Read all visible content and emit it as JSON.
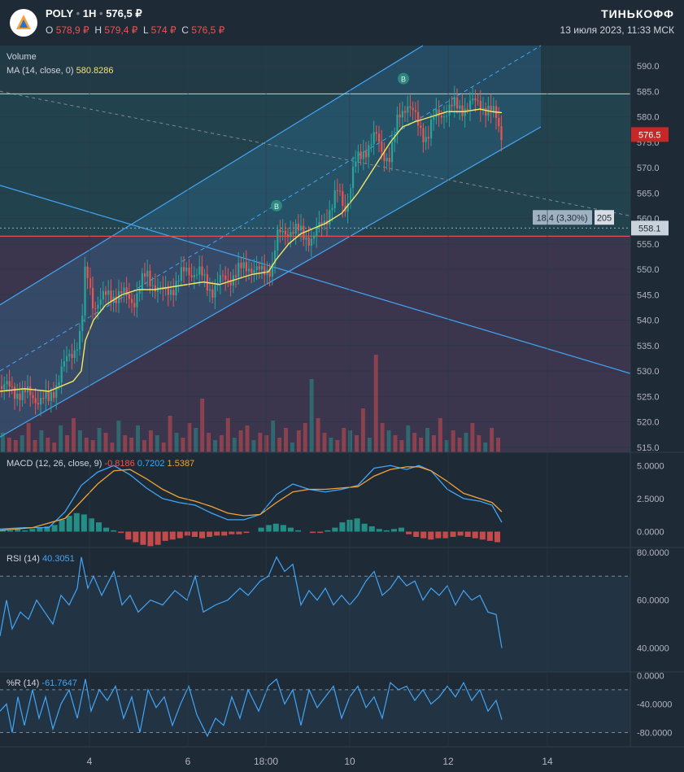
{
  "header": {
    "symbol": "POLY",
    "interval": "1H",
    "last": "576,5 ₽",
    "ohlc": [
      {
        "k": "O",
        "v": "578,9 ₽"
      },
      {
        "k": "H",
        "v": "579,4 ₽"
      },
      {
        "k": "L",
        "v": "574 ₽"
      },
      {
        "k": "C",
        "v": "576,5 ₽"
      }
    ],
    "brand": "ТИНЬКОФФ",
    "datetime": "13 июля 2023, 11:33 МСК"
  },
  "legends": {
    "volume": "Volume",
    "ma": "MA (14, close, 0)",
    "ma_value": "580.8286",
    "macd": "MACD (12, 26, close, 9)",
    "macd_values": [
      "-0.8186",
      "0.7202",
      "1.5387"
    ],
    "rsi": "RSI (14)",
    "rsi_value": "40.3051",
    "wr": "%R (14)",
    "wr_value": "-61.7647"
  },
  "measure": {
    "label": "18,4 (3,30%)",
    "bars": "205"
  },
  "colors": {
    "up": "#26a69a",
    "down": "#ef5350",
    "ma": "#f5e663",
    "channel": "#42a5f5",
    "macd_line": "#42a5f5",
    "signal_line": "#f2a33a",
    "rsi_line": "#42a5f5",
    "last_price": "#c62828",
    "hline": "#d4e157",
    "support": "#e05252"
  },
  "chart_data": [
    {
      "type": "candlestick",
      "title": "",
      "x_ticks": [
        "4",
        "6",
        "18:00",
        "10",
        "12",
        "14"
      ],
      "y_ticks": [
        515,
        520,
        525,
        530,
        535,
        540,
        545,
        550,
        555,
        560,
        565,
        570,
        575,
        580,
        585,
        590
      ],
      "ylim": [
        514,
        594
      ],
      "last_price_label": "576.5",
      "crosshair_price_label": "558.1",
      "price_trend": [
        [
          0,
          527
        ],
        [
          40,
          525
        ],
        [
          60,
          524
        ],
        [
          75,
          530
        ],
        [
          90,
          534
        ],
        [
          100,
          538
        ],
        [
          105,
          550
        ],
        [
          115,
          543
        ],
        [
          135,
          545
        ],
        [
          150,
          545
        ],
        [
          165,
          544
        ],
        [
          180,
          549
        ],
        [
          200,
          545
        ],
        [
          215,
          547
        ],
        [
          230,
          550
        ],
        [
          245,
          549
        ],
        [
          260,
          546
        ],
        [
          275,
          548
        ],
        [
          290,
          549
        ],
        [
          305,
          551
        ],
        [
          320,
          549
        ],
        [
          335,
          551
        ],
        [
          340,
          556
        ],
        [
          355,
          558
        ],
        [
          370,
          557
        ],
        [
          385,
          556
        ],
        [
          400,
          560
        ],
        [
          415,
          565
        ],
        [
          425,
          562
        ],
        [
          435,
          570
        ],
        [
          450,
          574
        ],
        [
          462,
          576
        ],
        [
          470,
          573
        ],
        [
          480,
          572
        ],
        [
          490,
          580
        ],
        [
          500,
          583
        ],
        [
          515,
          578
        ],
        [
          525,
          576
        ],
        [
          535,
          580
        ],
        [
          545,
          581
        ],
        [
          560,
          582
        ],
        [
          575,
          582
        ],
        [
          590,
          583
        ],
        [
          600,
          581
        ],
        [
          610,
          580
        ],
        [
          617,
          576.5
        ]
      ],
      "ma14": [
        [
          0,
          526
        ],
        [
          30,
          526.5
        ],
        [
          60,
          526
        ],
        [
          90,
          528
        ],
        [
          100,
          530
        ],
        [
          105,
          536
        ],
        [
          115,
          540
        ],
        [
          130,
          543
        ],
        [
          150,
          545
        ],
        [
          170,
          546
        ],
        [
          190,
          546
        ],
        [
          210,
          546.5
        ],
        [
          230,
          547
        ],
        [
          250,
          547.5
        ],
        [
          270,
          547
        ],
        [
          290,
          548
        ],
        [
          310,
          549
        ],
        [
          330,
          549.5
        ],
        [
          340,
          552
        ],
        [
          355,
          555
        ],
        [
          370,
          557
        ],
        [
          385,
          558
        ],
        [
          400,
          559
        ],
        [
          420,
          561
        ],
        [
          440,
          565
        ],
        [
          460,
          570
        ],
        [
          480,
          575
        ],
        [
          495,
          578
        ],
        [
          510,
          579
        ],
        [
          530,
          580
        ],
        [
          550,
          581
        ],
        [
          570,
          581
        ],
        [
          590,
          581.5
        ],
        [
          605,
          581
        ],
        [
          617,
          580.8
        ]
      ],
      "volume_bars": [
        8,
        6,
        5,
        7,
        12,
        5,
        9,
        6,
        4,
        11,
        7,
        14,
        9,
        6,
        5,
        10,
        8,
        4,
        13,
        7,
        6,
        11,
        5,
        9,
        7,
        4,
        15,
        8,
        6,
        12,
        10,
        22,
        8,
        5,
        7,
        14,
        6,
        9,
        11,
        5,
        8,
        7,
        13,
        6,
        10,
        4,
        9,
        12,
        30,
        14,
        8,
        6,
        5,
        10,
        9,
        7,
        18,
        6,
        40,
        12,
        9,
        7,
        5,
        11,
        8,
        6,
        10,
        7,
        14,
        5,
        9,
        6,
        8,
        12,
        7,
        4,
        10,
        6
      ]
    },
    {
      "type": "line",
      "title": "",
      "y_ticks": [
        "5.0000",
        "2.5000",
        "0.0000"
      ],
      "ylim": [
        -1.2,
        6.0
      ],
      "macd": [
        [
          0,
          0.2
        ],
        [
          30,
          0.3
        ],
        [
          60,
          0.3
        ],
        [
          80,
          1.5
        ],
        [
          100,
          3.5
        ],
        [
          120,
          4.5
        ],
        [
          140,
          5.0
        ],
        [
          160,
          4.3
        ],
        [
          180,
          3.3
        ],
        [
          200,
          2.5
        ],
        [
          220,
          2.2
        ],
        [
          240,
          2.0
        ],
        [
          260,
          1.4
        ],
        [
          280,
          0.9
        ],
        [
          300,
          0.9
        ],
        [
          320,
          1.3
        ],
        [
          340,
          2.8
        ],
        [
          360,
          3.6
        ],
        [
          380,
          3.2
        ],
        [
          400,
          3.0
        ],
        [
          420,
          3.2
        ],
        [
          440,
          3.5
        ],
        [
          460,
          4.8
        ],
        [
          480,
          5.0
        ],
        [
          500,
          4.7
        ],
        [
          515,
          5.0
        ],
        [
          530,
          4.6
        ],
        [
          550,
          3.2
        ],
        [
          570,
          2.5
        ],
        [
          590,
          2.3
        ],
        [
          605,
          2.0
        ],
        [
          617,
          0.7
        ]
      ],
      "signal": [
        [
          0,
          0.1
        ],
        [
          40,
          0.3
        ],
        [
          80,
          1.0
        ],
        [
          100,
          2.3
        ],
        [
          120,
          3.6
        ],
        [
          140,
          4.6
        ],
        [
          160,
          4.7
        ],
        [
          180,
          4.0
        ],
        [
          200,
          3.2
        ],
        [
          220,
          2.6
        ],
        [
          240,
          2.3
        ],
        [
          260,
          1.9
        ],
        [
          280,
          1.4
        ],
        [
          300,
          1.2
        ],
        [
          320,
          1.3
        ],
        [
          340,
          2.2
        ],
        [
          360,
          3.0
        ],
        [
          380,
          3.2
        ],
        [
          400,
          3.2
        ],
        [
          420,
          3.3
        ],
        [
          440,
          3.4
        ],
        [
          460,
          4.2
        ],
        [
          480,
          4.7
        ],
        [
          500,
          4.9
        ],
        [
          515,
          4.9
        ],
        [
          530,
          4.6
        ],
        [
          550,
          3.8
        ],
        [
          570,
          2.9
        ],
        [
          590,
          2.5
        ],
        [
          605,
          2.2
        ],
        [
          617,
          1.5
        ]
      ],
      "histogram": [
        0.1,
        0.1,
        0.2,
        0.1,
        0.2,
        0.3,
        0.4,
        0.5,
        0.9,
        1.2,
        1.4,
        1.3,
        1.0,
        0.7,
        0.3,
        0.1,
        -0.1,
        -0.6,
        -0.8,
        -1.0,
        -1.1,
        -1.0,
        -0.7,
        -0.6,
        -0.5,
        -0.3,
        -0.4,
        -0.5,
        -0.4,
        -0.3,
        -0.3,
        -0.2,
        -0.2,
        -0.1,
        0.0,
        0.3,
        0.5,
        0.6,
        0.5,
        0.3,
        0.1,
        0.0,
        -0.1,
        -0.1,
        0.1,
        0.3,
        0.7,
        0.9,
        1.0,
        0.6,
        0.4,
        0.2,
        0.1,
        0.2,
        0.3,
        -0.2,
        -0.4,
        -0.5,
        -0.6,
        -0.5,
        -0.5,
        -0.4,
        -0.3,
        -0.4,
        -0.5,
        -0.6,
        -0.7,
        -0.8
      ]
    },
    {
      "type": "line",
      "title": "",
      "y_ticks": [
        "80.0000",
        "60.0000",
        "40.0000"
      ],
      "ylim": [
        30,
        82
      ],
      "levels": [
        70,
        30
      ],
      "rsi": [
        [
          0,
          45
        ],
        [
          8,
          60
        ],
        [
          15,
          48
        ],
        [
          25,
          55
        ],
        [
          35,
          52
        ],
        [
          45,
          60
        ],
        [
          55,
          55
        ],
        [
          65,
          50
        ],
        [
          75,
          62
        ],
        [
          85,
          58
        ],
        [
          95,
          65
        ],
        [
          100,
          78
        ],
        [
          108,
          65
        ],
        [
          115,
          70
        ],
        [
          125,
          62
        ],
        [
          140,
          72
        ],
        [
          150,
          58
        ],
        [
          160,
          62
        ],
        [
          170,
          55
        ],
        [
          185,
          60
        ],
        [
          200,
          58
        ],
        [
          215,
          64
        ],
        [
          230,
          60
        ],
        [
          240,
          70
        ],
        [
          250,
          55
        ],
        [
          265,
          58
        ],
        [
          280,
          60
        ],
        [
          295,
          65
        ],
        [
          305,
          62
        ],
        [
          320,
          68
        ],
        [
          330,
          70
        ],
        [
          340,
          78
        ],
        [
          350,
          72
        ],
        [
          360,
          75
        ],
        [
          370,
          58
        ],
        [
          380,
          64
        ],
        [
          390,
          60
        ],
        [
          400,
          65
        ],
        [
          410,
          58
        ],
        [
          420,
          62
        ],
        [
          430,
          58
        ],
        [
          440,
          62
        ],
        [
          450,
          68
        ],
        [
          460,
          72
        ],
        [
          470,
          62
        ],
        [
          480,
          65
        ],
        [
          490,
          70
        ],
        [
          500,
          66
        ],
        [
          510,
          68
        ],
        [
          520,
          60
        ],
        [
          530,
          65
        ],
        [
          540,
          62
        ],
        [
          550,
          66
        ],
        [
          560,
          58
        ],
        [
          570,
          64
        ],
        [
          580,
          60
        ],
        [
          590,
          62
        ],
        [
          600,
          55
        ],
        [
          610,
          54
        ],
        [
          617,
          40
        ]
      ]
    },
    {
      "type": "line",
      "title": "",
      "y_ticks": [
        "0.0000",
        "-40.0000",
        "-80.0000"
      ],
      "ylim": [
        -100,
        5
      ],
      "levels": [
        -20,
        -80
      ],
      "wr": [
        [
          0,
          -50
        ],
        [
          8,
          -40
        ],
        [
          15,
          -80
        ],
        [
          22,
          -30
        ],
        [
          30,
          -70
        ],
        [
          40,
          -20
        ],
        [
          48,
          -60
        ],
        [
          56,
          -30
        ],
        [
          65,
          -75
        ],
        [
          75,
          -40
        ],
        [
          85,
          -20
        ],
        [
          95,
          -60
        ],
        [
          105,
          -5
        ],
        [
          112,
          -50
        ],
        [
          122,
          -20
        ],
        [
          132,
          -35
        ],
        [
          142,
          -15
        ],
        [
          152,
          -60
        ],
        [
          162,
          -30
        ],
        [
          172,
          -80
        ],
        [
          182,
          -20
        ],
        [
          192,
          -45
        ],
        [
          202,
          -30
        ],
        [
          212,
          -70
        ],
        [
          222,
          -40
        ],
        [
          232,
          -15
        ],
        [
          242,
          -55
        ],
        [
          255,
          -85
        ],
        [
          265,
          -60
        ],
        [
          275,
          -70
        ],
        [
          285,
          -30
        ],
        [
          295,
          -60
        ],
        [
          305,
          -20
        ],
        [
          318,
          -50
        ],
        [
          330,
          -15
        ],
        [
          340,
          -5
        ],
        [
          350,
          -40
        ],
        [
          360,
          -20
        ],
        [
          370,
          -70
        ],
        [
          380,
          -20
        ],
        [
          390,
          -45
        ],
        [
          400,
          -30
        ],
        [
          410,
          -15
        ],
        [
          420,
          -60
        ],
        [
          430,
          -30
        ],
        [
          440,
          -15
        ],
        [
          450,
          -45
        ],
        [
          460,
          -30
        ],
        [
          470,
          -60
        ],
        [
          480,
          -10
        ],
        [
          490,
          -20
        ],
        [
          500,
          -15
        ],
        [
          510,
          -35
        ],
        [
          520,
          -20
        ],
        [
          530,
          -40
        ],
        [
          540,
          -30
        ],
        [
          550,
          -15
        ],
        [
          560,
          -30
        ],
        [
          570,
          -10
        ],
        [
          580,
          -35
        ],
        [
          590,
          -20
        ],
        [
          600,
          -50
        ],
        [
          610,
          -35
        ],
        [
          617,
          -62
        ]
      ]
    }
  ]
}
